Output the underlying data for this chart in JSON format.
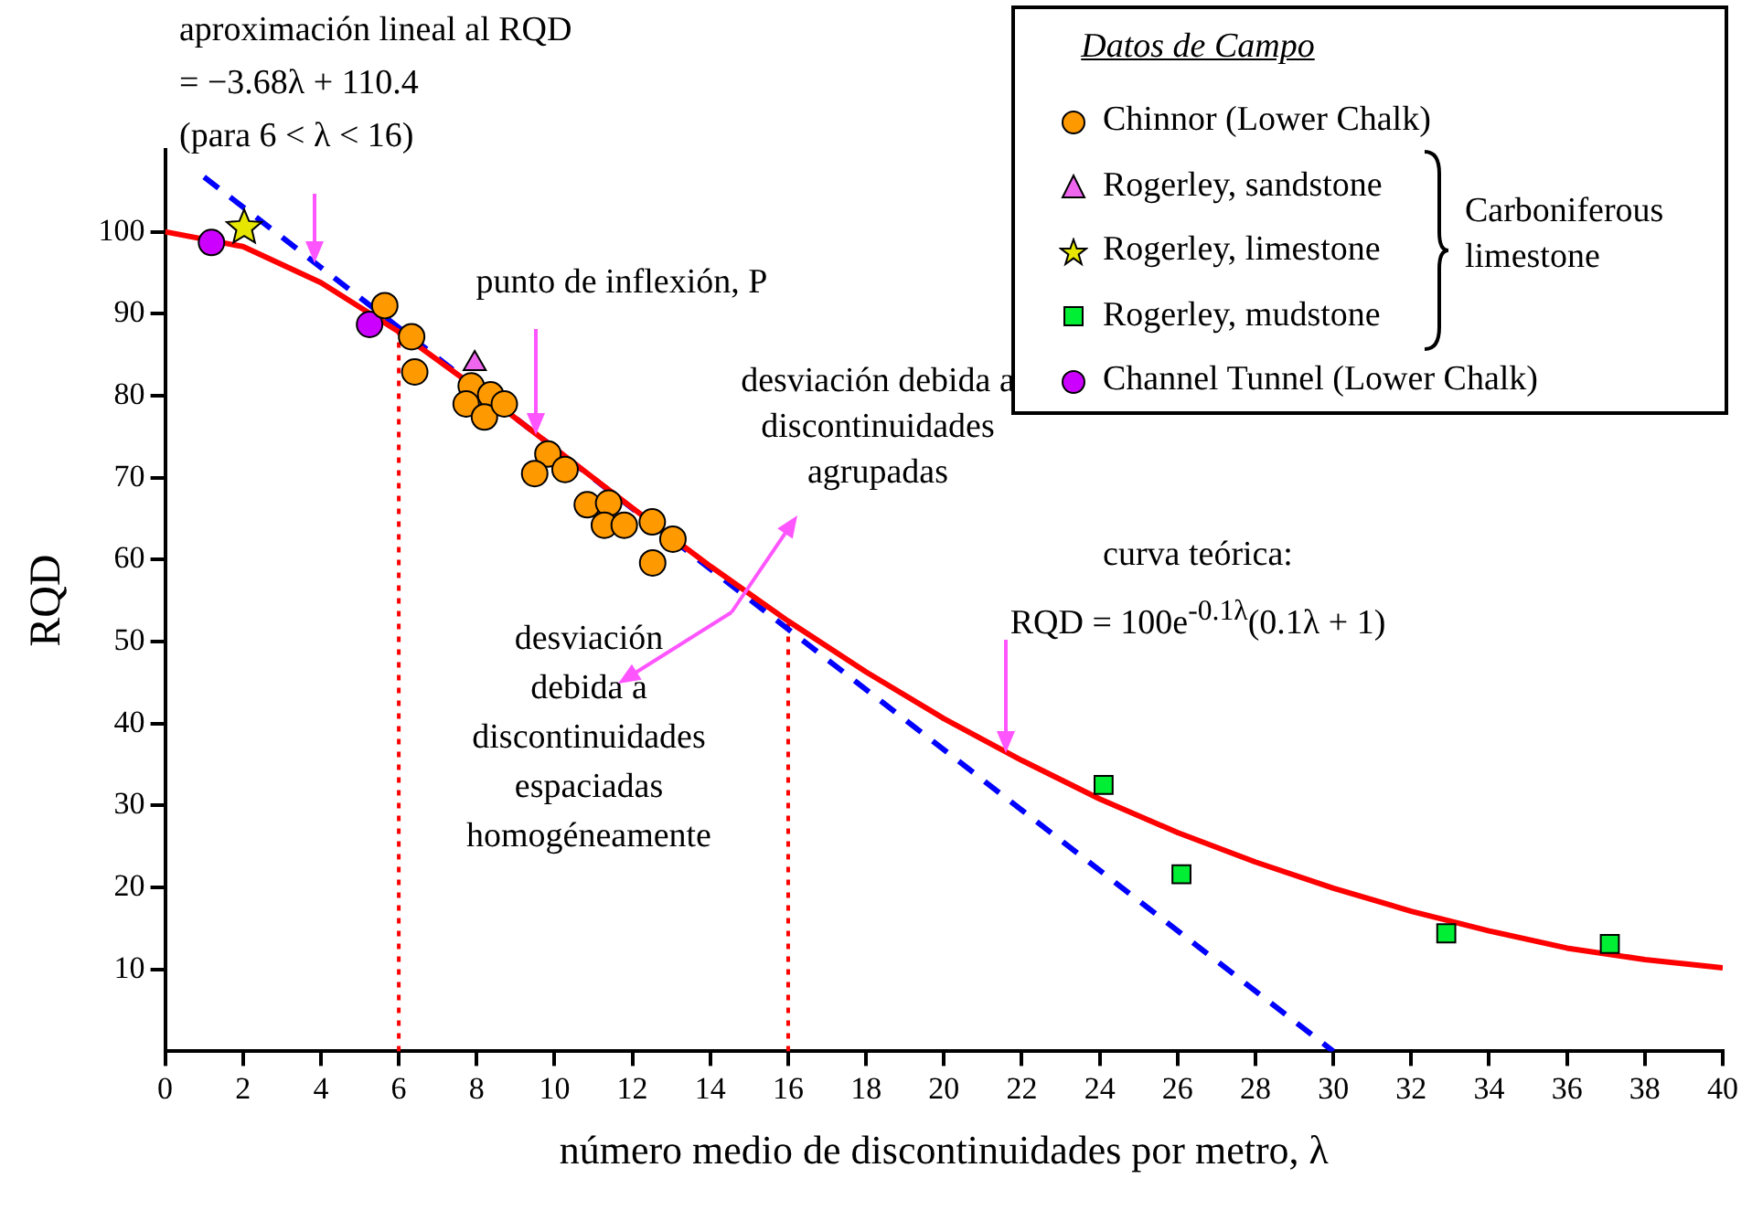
{
  "chart_data": {
    "type": "scatter",
    "xlabel": "número medio de discontinuidades por metro, λ",
    "ylabel": "RQD",
    "legend_title": "Datos de Campo",
    "legend": "top right",
    "grid": false,
    "xlim": [
      0,
      40
    ],
    "xticks": [
      0,
      2,
      4,
      6,
      8,
      10,
      12,
      14,
      16,
      18,
      20,
      22,
      24,
      26,
      28,
      30,
      32,
      34,
      36,
      38,
      40
    ],
    "ylim": [
      0,
      110
    ],
    "yticks": [
      10,
      20,
      30,
      40,
      50,
      60,
      70,
      80,
      90,
      100
    ],
    "series": [
      {
        "name": "Chinnor (Lower Chalk)",
        "type": "scatter",
        "marker": "circle",
        "color": "#ff9900",
        "x": [
          5.64,
          6.33,
          6.41,
          7.86,
          7.73,
          8.36,
          8.2,
          8.71,
          9.83,
          9.49,
          10.27,
          10.84,
          11.39,
          11.28,
          11.79,
          12.51,
          13.04,
          12.52
        ],
        "values": [
          91.0,
          87.2,
          82.9,
          81.2,
          79.0,
          80.1,
          77.4,
          79.0,
          72.9,
          70.5,
          71.0,
          66.7,
          66.9,
          64.2,
          64.2,
          64.6,
          62.5,
          59.6
        ]
      },
      {
        "name": "Rogerley, sandstone",
        "type": "scatter",
        "marker": "triangle",
        "color": "#ee66ee",
        "x": [
          7.95
        ],
        "values": [
          83.9
        ]
      },
      {
        "name": "Rogerley, limestone",
        "type": "scatter",
        "marker": "star",
        "color": "#e6e600",
        "x": [
          2.03
        ],
        "values": [
          100.5
        ]
      },
      {
        "name": "Rogerley, mudstone",
        "type": "scatter",
        "marker": "square",
        "color": "#00ee33",
        "x": [
          24.1,
          26.1,
          32.9,
          37.1
        ],
        "values": [
          32.5,
          21.6,
          14.4,
          13.1
        ]
      },
      {
        "name": "Channel Tunnel (Lower Chalk)",
        "type": "scatter",
        "marker": "circle",
        "color": "#cc00ff",
        "x": [
          1.19,
          5.25
        ],
        "values": [
          98.7,
          88.7
        ]
      },
      {
        "type": "line",
        "marker": "none",
        "line_style": "solid",
        "color": "#ff0000",
        "x": [
          0,
          2,
          4,
          6,
          8,
          10,
          12,
          14,
          16,
          18,
          20,
          22,
          24,
          26,
          28,
          30,
          32,
          34,
          36,
          38,
          40
        ],
        "values": [
          100,
          98.2,
          93.8,
          87.8,
          80.9,
          73.6,
          66.3,
          59.2,
          52.5,
          46.3,
          40.6,
          35.5,
          30.8,
          26.7,
          23.1,
          19.9,
          17.1,
          14.7,
          12.6,
          11.2,
          10.2
        ]
      },
      {
        "type": "line",
        "marker": "none",
        "line_style": "dashed",
        "color": "#0000ff",
        "x": [
          1,
          30
        ],
        "values": [
          106.7,
          0
        ]
      },
      {
        "type": "line",
        "marker": "none",
        "line_style": "dotted",
        "color": "#ff0000",
        "x": [
          6,
          6
        ],
        "values": [
          0,
          87.8
        ]
      },
      {
        "type": "line",
        "marker": "none",
        "line_style": "dotted",
        "color": "#ff0000",
        "x": [
          16,
          16
        ],
        "values": [
          0,
          52.5
        ]
      }
    ],
    "annotations": [
      {
        "text": "aproximación lineal al RQD\n= −3.68λ + 110.4\n(para 6 < λ < 16)",
        "x": 3.85,
        "y": 96.2
      },
      {
        "text": "punto de inflexión, P",
        "x": 9.54,
        "y": 75.3
      },
      "desviación debida a\ndiscontinuidades\nagrupadas",
      "desviación\ndebida a\ndiscontinuidades\nespaciadas\nhomogéneamente",
      {
        "text": "curva teórica:\nRQD = 100e$^{-0.1λ}$(0.1λ + 1)",
        "x": 21.6,
        "y": 36.4
      },
      "Carboniferous\nlimestone"
    ]
  }
}
